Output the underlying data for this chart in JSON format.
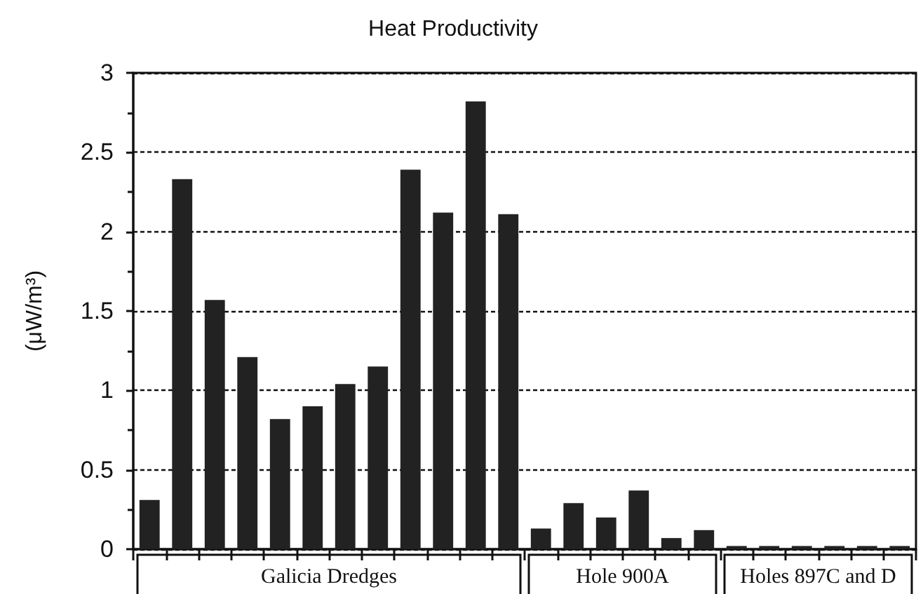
{
  "chart_data": {
    "type": "bar",
    "title": "Heat Productivity",
    "ylabel": "(μW/m³)",
    "categories": [
      null,
      null,
      null,
      null,
      null,
      null,
      null,
      null,
      null,
      null,
      null,
      null,
      null,
      null,
      null,
      null,
      null,
      null,
      null,
      null,
      null,
      null,
      null,
      null
    ],
    "series": [
      {
        "name": "Galicia Dredges",
        "color": "#222222",
        "values": [
          0.31,
          2.33,
          1.57,
          1.21,
          0.82,
          0.9,
          1.04,
          1.15,
          2.39,
          2.12,
          2.82,
          2.11,
          null,
          null,
          null,
          null,
          null,
          null,
          null,
          null,
          null,
          null,
          null,
          null
        ]
      },
      {
        "name": "Hole 900A",
        "color": "#222222",
        "values": [
          null,
          null,
          null,
          null,
          null,
          null,
          null,
          null,
          null,
          null,
          null,
          null,
          0.13,
          0.29,
          0.2,
          0.37,
          0.07,
          0.12,
          null,
          null,
          null,
          null,
          null,
          null
        ]
      },
      {
        "name": "Holes 897C and D",
        "color": "#222222",
        "values": [
          null,
          null,
          null,
          null,
          null,
          null,
          null,
          null,
          null,
          null,
          null,
          null,
          null,
          null,
          null,
          null,
          null,
          null,
          0.02,
          0.02,
          0.02,
          0.02,
          0.02,
          0.02
        ]
      }
    ],
    "ylim": [
      0,
      3
    ],
    "yticks": [
      0,
      0.5,
      1,
      1.5,
      2,
      2.5,
      3
    ],
    "grid": "y",
    "legend": false
  }
}
